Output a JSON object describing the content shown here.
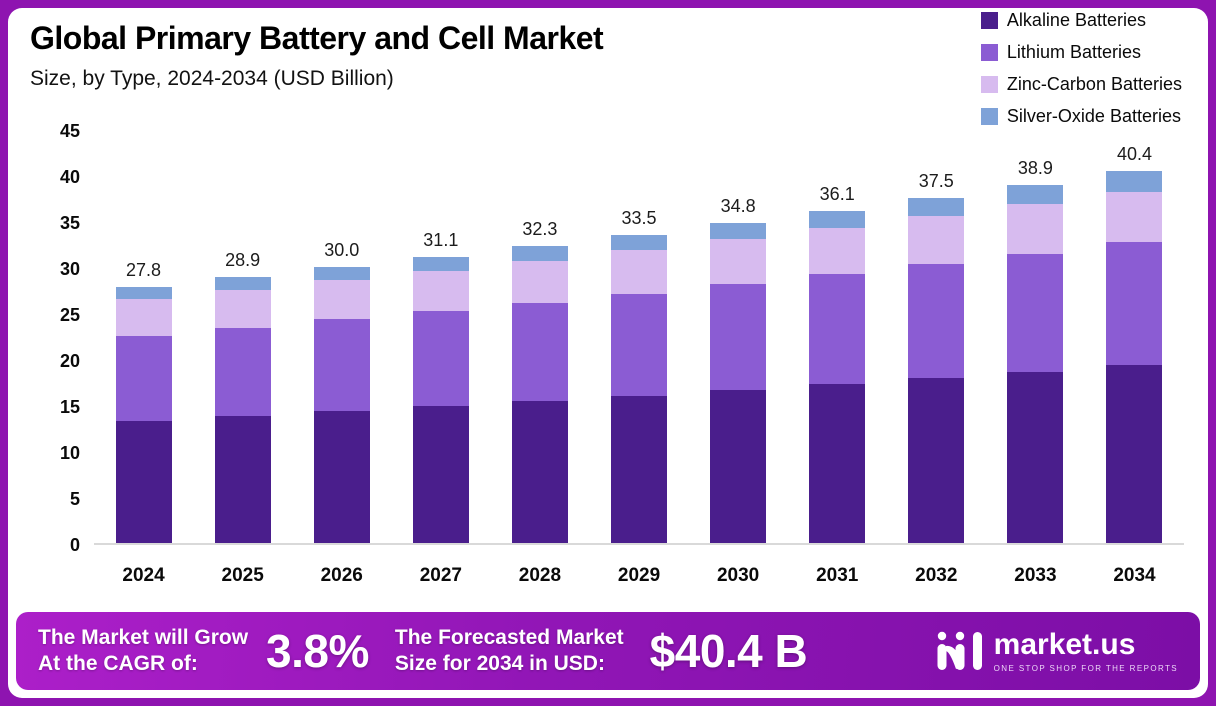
{
  "header": {
    "title": "Global Primary Battery and Cell Market",
    "subtitle": "Size, by Type, 2024-2034 (USD Billion)"
  },
  "legend": [
    {
      "label": "Alkaline Batteries",
      "color": "#4A1E8C"
    },
    {
      "label": "Lithium Batteries",
      "color": "#8B5CD3"
    },
    {
      "label": "Zinc-Carbon Batteries",
      "color": "#D7BBEF"
    },
    {
      "label": "Silver-Oxide Batteries",
      "color": "#7EA2D8"
    }
  ],
  "chart_data": {
    "type": "bar",
    "stacked": true,
    "title": "Global Primary Battery and Cell Market",
    "subtitle": "Size, by Type, 2024-2034 (USD Billion)",
    "xlabel": "",
    "ylabel": "USD Billion",
    "ylim": [
      0,
      45
    ],
    "yticks": [
      0,
      5,
      10,
      15,
      20,
      25,
      30,
      35,
      40,
      45
    ],
    "grid": false,
    "legend_position": "top-right",
    "categories": [
      "2024",
      "2025",
      "2026",
      "2027",
      "2028",
      "2029",
      "2030",
      "2031",
      "2032",
      "2033",
      "2034"
    ],
    "series": [
      {
        "name": "Alkaline Batteries",
        "color": "#4A1E8C",
        "values": [
          13.3,
          13.8,
          14.3,
          14.9,
          15.4,
          16.0,
          16.6,
          17.3,
          17.9,
          18.6,
          19.3
        ]
      },
      {
        "name": "Lithium Batteries",
        "color": "#8B5CD3",
        "values": [
          9.2,
          9.6,
          10.0,
          10.3,
          10.7,
          11.1,
          11.5,
          11.9,
          12.4,
          12.8,
          13.4
        ]
      },
      {
        "name": "Zinc-Carbon Batteries",
        "color": "#D7BBEF",
        "values": [
          4.0,
          4.1,
          4.3,
          4.4,
          4.6,
          4.7,
          4.9,
          5.0,
          5.2,
          5.4,
          5.5
        ]
      },
      {
        "name": "Silver-Oxide Batteries",
        "color": "#7EA2D8",
        "values": [
          1.3,
          1.4,
          1.4,
          1.5,
          1.6,
          1.7,
          1.8,
          1.9,
          2.0,
          2.1,
          2.2
        ]
      }
    ],
    "totals": [
      27.8,
      28.9,
      30.0,
      31.1,
      32.3,
      33.5,
      34.8,
      36.1,
      37.5,
      38.9,
      40.4
    ],
    "totals_display": [
      "27.8",
      "28.9",
      "30.0",
      "31.1",
      "32.3",
      "33.5",
      "34.8",
      "36.1",
      "37.5",
      "38.9",
      "40.4"
    ]
  },
  "footer": {
    "cagr_label_line1": "The Market will Grow",
    "cagr_label_line2": "At the CAGR of:",
    "cagr_value": "3.8%",
    "forecast_label_line1": "The Forecasted Market",
    "forecast_label_line2": "Size for 2034 in USD:",
    "forecast_value": "$40.4 B",
    "brand": {
      "name": "market.us",
      "tagline": "ONE STOP SHOP FOR THE REPORTS"
    }
  },
  "colors": {
    "frame_border": "#8E14B0",
    "banner_gradient_start": "#AC1FC9",
    "banner_gradient_end": "#7C0EA6"
  }
}
